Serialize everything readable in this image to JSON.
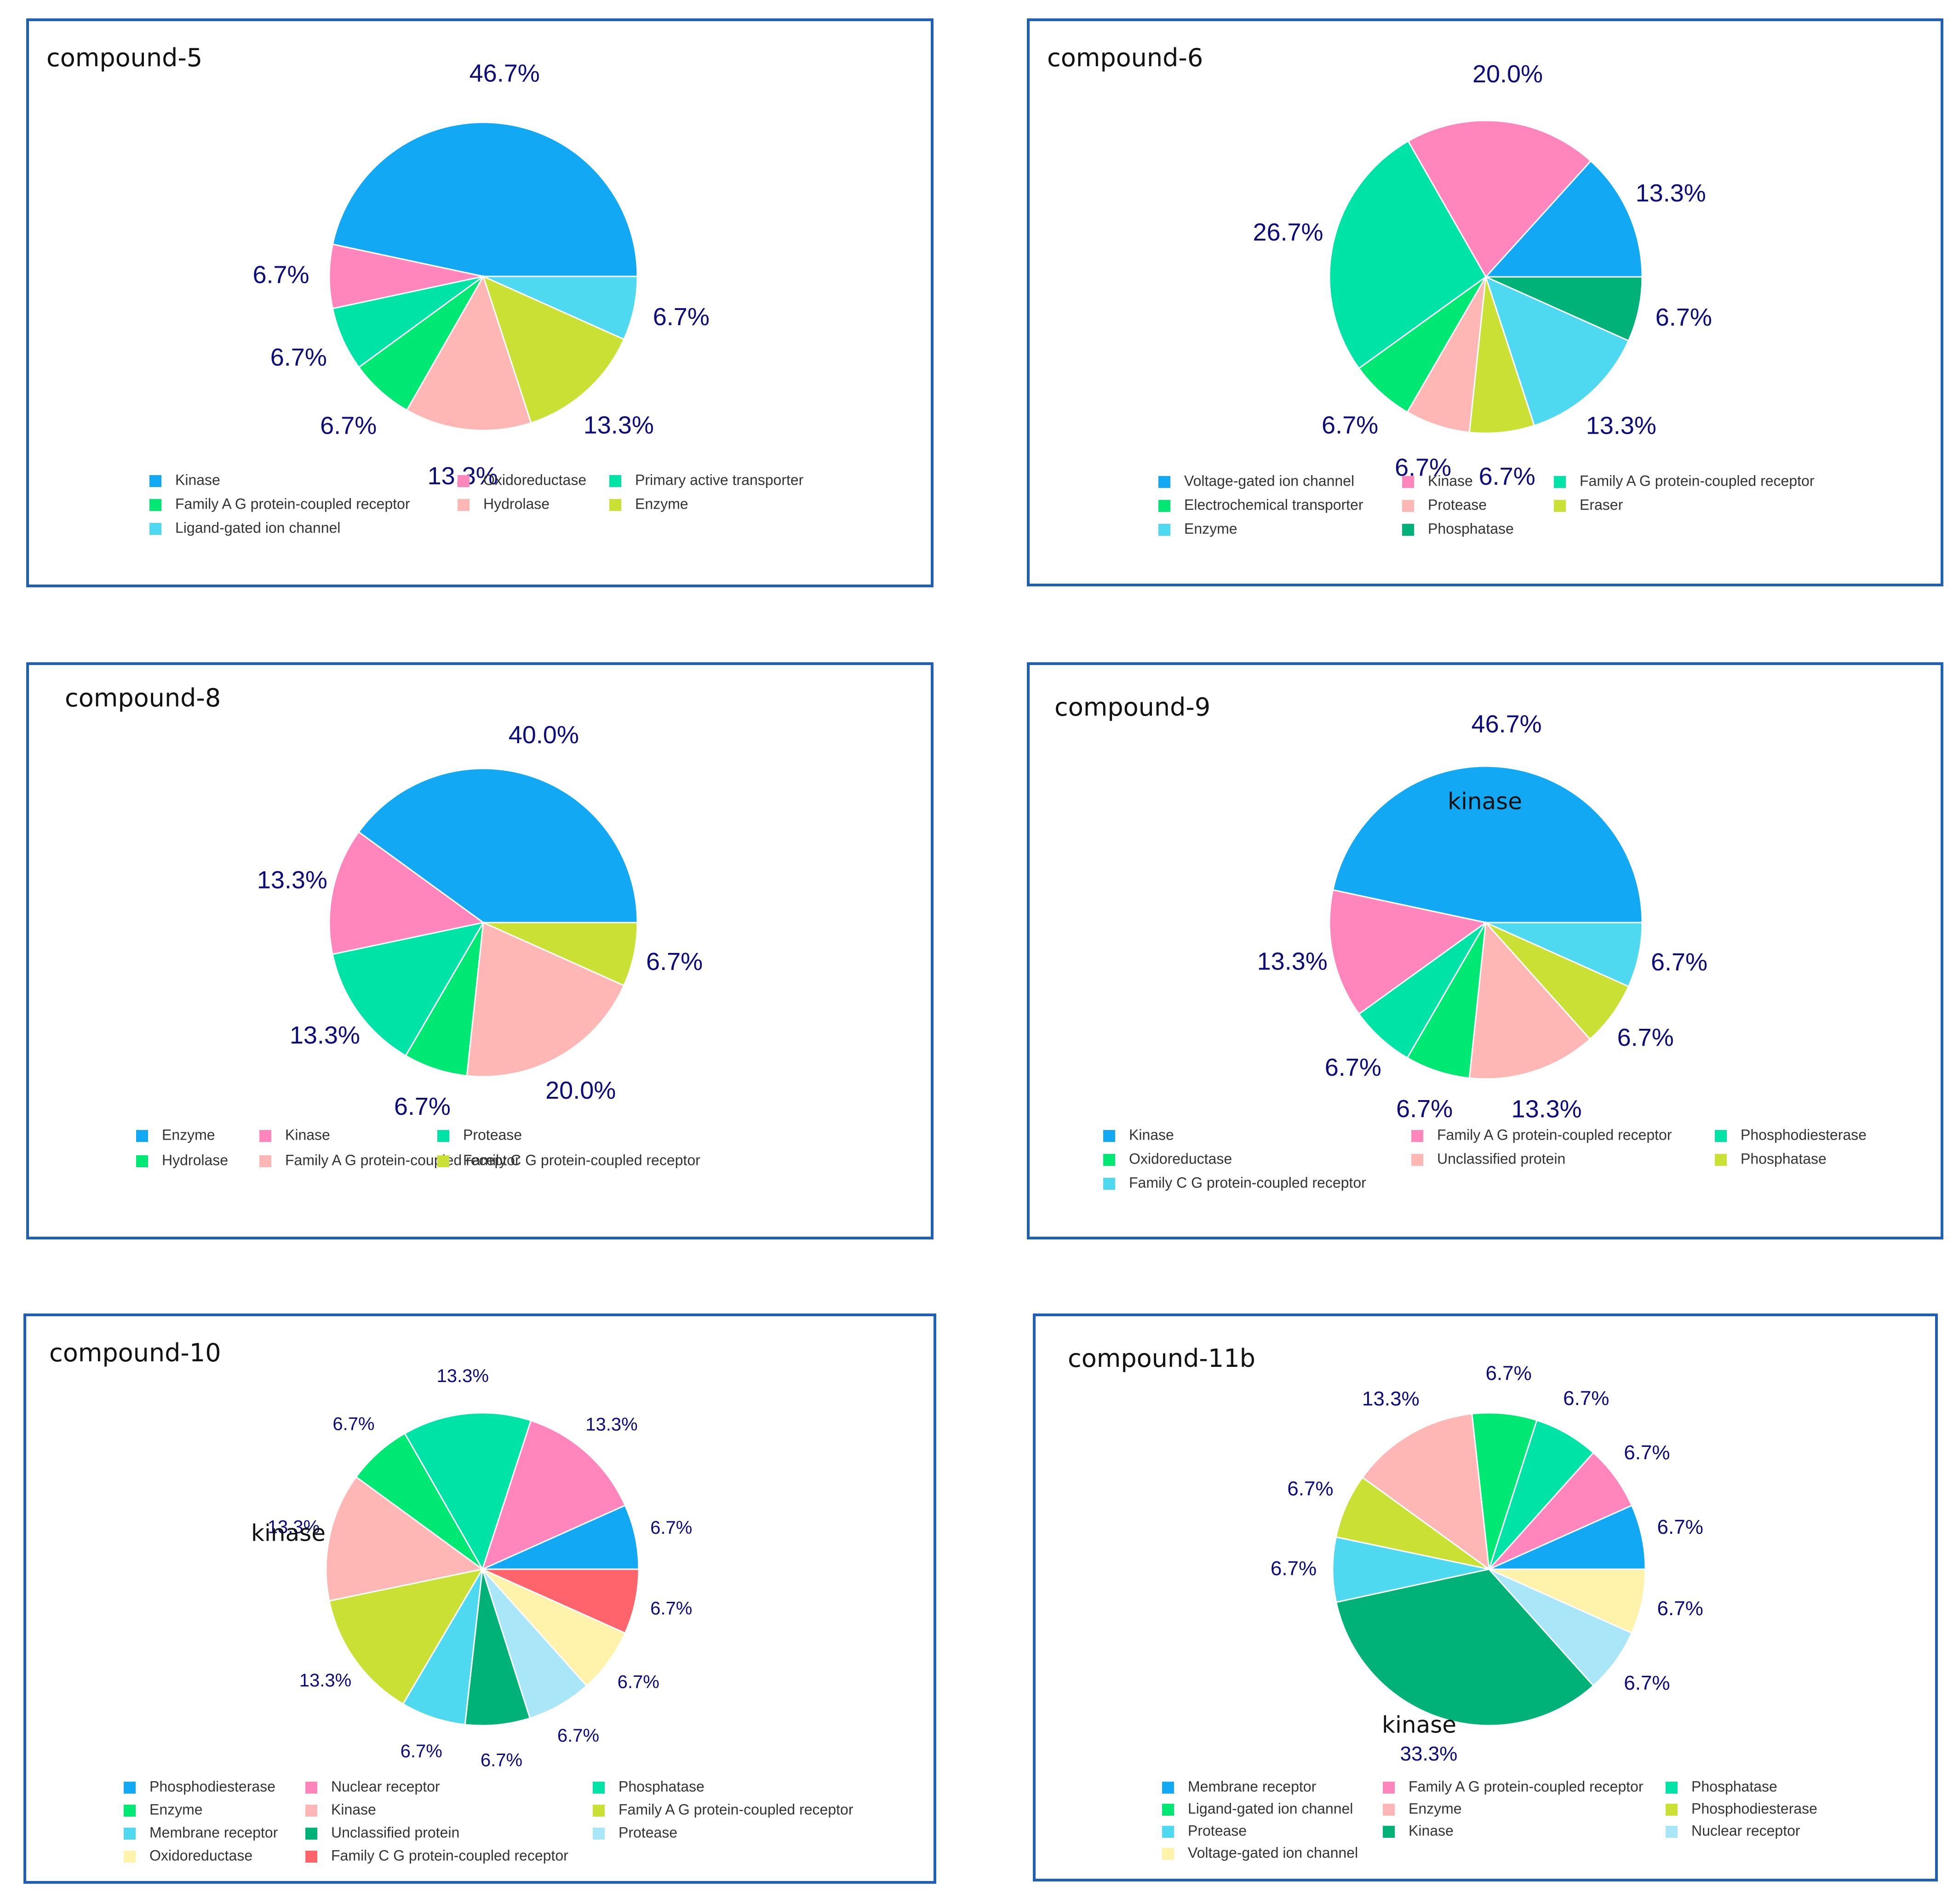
{
  "colors": {
    "blue": "#12a8f3",
    "pink": "#ff85bd",
    "teal": "#00e3a6",
    "green": "#00e874",
    "salmon": "#ffb7b5",
    "lime": "#cbe034",
    "cyan": "#4fd9f0",
    "darkgreen": "#00b277",
    "yellow": "#fff3ab",
    "red": "#ff646d",
    "lightblue": "#a8e6f8",
    "label": "#0b0b7a",
    "border": "#1f5fb4"
  },
  "chart_data": [
    {
      "title": "compound-5",
      "type": "pie",
      "slices": [
        {
          "label": "Kinase",
          "value": 46.7,
          "color": "blue",
          "pct": "46.7%"
        },
        {
          "label": "Oxidoreductase",
          "value": 6.7,
          "color": "pink",
          "pct": "6.7%"
        },
        {
          "label": "Primary active transporter",
          "value": 6.7,
          "color": "teal",
          "pct": "6.7%"
        },
        {
          "label": "Family A G protein-coupled receptor",
          "value": 6.7,
          "color": "green",
          "pct": "6.7%"
        },
        {
          "label": "Hydrolase",
          "value": 13.3,
          "color": "salmon",
          "pct": "13.3%"
        },
        {
          "label": "Enzyme",
          "value": 13.3,
          "color": "lime",
          "pct": "13.3%"
        },
        {
          "label": "Ligand-gated ion channel",
          "value": 6.7,
          "color": "cyan",
          "pct": "6.7%"
        }
      ],
      "inner_labels": []
    },
    {
      "title": "compound-6",
      "type": "pie",
      "slices": [
        {
          "label": "Voltage-gated ion channel",
          "value": 13.3,
          "color": "blue",
          "pct": "13.3%"
        },
        {
          "label": "Kinase",
          "value": 20.0,
          "color": "pink",
          "pct": "20.0%"
        },
        {
          "label": "Family A G protein-coupled receptor",
          "value": 26.7,
          "color": "teal",
          "pct": "26.7%"
        },
        {
          "label": "Electrochemical transporter",
          "value": 6.7,
          "color": "green",
          "pct": "6.7%"
        },
        {
          "label": "Protease",
          "value": 6.7,
          "color": "salmon",
          "pct": "6.7%"
        },
        {
          "label": "Eraser",
          "value": 6.7,
          "color": "lime",
          "pct": "6.7%"
        },
        {
          "label": "Enzyme",
          "value": 13.3,
          "color": "cyan",
          "pct": "13.3%"
        },
        {
          "label": "Phosphatase",
          "value": 6.7,
          "color": "darkgreen",
          "pct": "6.7%"
        }
      ],
      "inner_labels": []
    },
    {
      "title": "compound-8",
      "type": "pie",
      "slices": [
        {
          "label": "Enzyme",
          "value": 40.0,
          "color": "blue",
          "pct": "40.0%"
        },
        {
          "label": "Kinase",
          "value": 13.3,
          "color": "pink",
          "pct": "13.3%"
        },
        {
          "label": "Protease",
          "value": 13.3,
          "color": "teal",
          "pct": "13.3%"
        },
        {
          "label": "Hydrolase",
          "value": 6.7,
          "color": "green",
          "pct": "6.7%"
        },
        {
          "label": "Family A G protein-coupled receptor",
          "value": 20.0,
          "color": "salmon",
          "pct": "20.0%"
        },
        {
          "label": "Family C G protein-coupled receptor",
          "value": 6.7,
          "color": "lime",
          "pct": "6.7%"
        }
      ],
      "inner_labels": []
    },
    {
      "title": "compound-9",
      "type": "pie",
      "slices": [
        {
          "label": "Kinase",
          "value": 46.7,
          "color": "blue",
          "pct": "46.7%"
        },
        {
          "label": "Family A G protein-coupled receptor",
          "value": 13.3,
          "color": "pink",
          "pct": "13.3%"
        },
        {
          "label": "Phosphodiesterase",
          "value": 6.7,
          "color": "teal",
          "pct": "6.7%"
        },
        {
          "label": "Oxidoreductase",
          "value": 6.7,
          "color": "green",
          "pct": "6.7%"
        },
        {
          "label": "Unclassified protein",
          "value": 13.3,
          "color": "salmon",
          "pct": "13.3%"
        },
        {
          "label": "Phosphatase",
          "value": 6.7,
          "color": "lime",
          "pct": "6.7%"
        },
        {
          "label": "Family C G protein-coupled receptor",
          "value": 6.7,
          "color": "cyan",
          "pct": "6.7%"
        }
      ],
      "inner_labels": [
        "kinase"
      ]
    },
    {
      "title": "compound-10",
      "type": "pie",
      "slices": [
        {
          "label": "Phosphodiesterase",
          "value": 6.7,
          "color": "blue",
          "pct": "6.7%"
        },
        {
          "label": "Nuclear receptor",
          "value": 13.3,
          "color": "pink",
          "pct": "13.3%"
        },
        {
          "label": "Phosphatase",
          "value": 13.3,
          "color": "teal",
          "pct": "13.3%"
        },
        {
          "label": "Enzyme",
          "value": 6.7,
          "color": "green",
          "pct": "6.7%"
        },
        {
          "label": "Kinase",
          "value": 13.3,
          "color": "salmon",
          "pct": "13.3%"
        },
        {
          "label": "Family A G protein-coupled receptor",
          "value": 13.3,
          "color": "lime",
          "pct": "13.3%"
        },
        {
          "label": "Membrane receptor",
          "value": 6.7,
          "color": "cyan",
          "pct": "6.7%"
        },
        {
          "label": "Unclassified protein",
          "value": 6.7,
          "color": "darkgreen",
          "pct": "6.7%"
        },
        {
          "label": "Protease",
          "value": 6.7,
          "color": "lightblue",
          "pct": "6.7%"
        },
        {
          "label": "Oxidoreductase",
          "value": 6.7,
          "color": "yellow",
          "pct": "6.7%"
        },
        {
          "label": "Family C G protein-coupled receptor",
          "value": 6.7,
          "color": "red",
          "pct": "6.7%"
        }
      ],
      "inner_labels": [
        "kinase"
      ]
    },
    {
      "title": "compound-11b",
      "type": "pie",
      "slices": [
        {
          "label": "Membrane receptor",
          "value": 6.7,
          "color": "blue",
          "pct": "6.7%"
        },
        {
          "label": "Family A G protein-coupled receptor",
          "value": 6.7,
          "color": "pink",
          "pct": "6.7%"
        },
        {
          "label": "Phosphatase",
          "value": 6.7,
          "color": "teal",
          "pct": "6.7%"
        },
        {
          "label": "Ligand-gated ion channel",
          "value": 6.7,
          "color": "green",
          "pct": "6.7%"
        },
        {
          "label": "Enzyme",
          "value": 13.3,
          "color": "salmon",
          "pct": "13.3%"
        },
        {
          "label": "Phosphodiesterase",
          "value": 6.7,
          "color": "lime",
          "pct": "6.7%"
        },
        {
          "label": "Protease",
          "value": 6.7,
          "color": "cyan",
          "pct": "6.7%"
        },
        {
          "label": "Kinase",
          "value": 33.3,
          "color": "darkgreen",
          "pct": "33.3%"
        },
        {
          "label": "Nuclear receptor",
          "value": 6.7,
          "color": "lightblue",
          "pct": "6.7%"
        },
        {
          "label": "Voltage-gated ion channel",
          "value": 6.7,
          "color": "yellow",
          "pct": "6.7%"
        }
      ],
      "inner_labels": [
        "kinase"
      ]
    }
  ]
}
